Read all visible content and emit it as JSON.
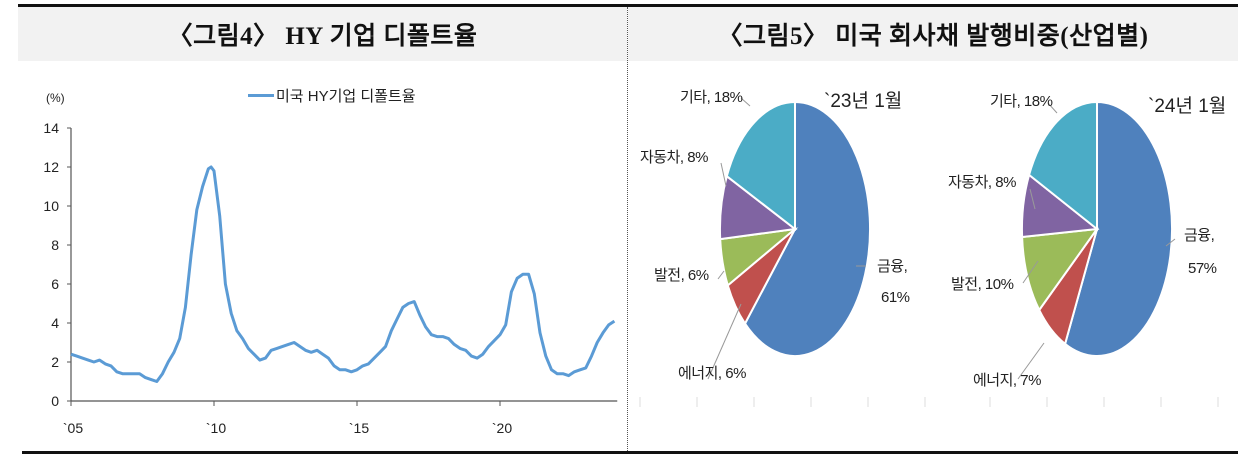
{
  "figure4": {
    "title": "〈그림4〉 HY 기업 디폴트율",
    "unit_label": "(%)",
    "legend_label": "미국 HY기업 디폴트율",
    "y_ticks": [
      "14",
      "12",
      "10",
      "8",
      "6",
      "4",
      "2",
      "0"
    ],
    "x_ticks": [
      "`05",
      "`10",
      "`15",
      "`20"
    ]
  },
  "figure5": {
    "title": "〈그림5〉 미국 회사채 발행비중(산업별)",
    "pie_2023": {
      "period": "`23년 1월",
      "labels": {
        "other": "기타, 18%",
        "auto": "자동차, 8%",
        "power": "발전, 6%",
        "energy": "에너지, 6%",
        "finance_name": "금융,",
        "finance_value": "61%"
      }
    },
    "pie_2024": {
      "period": "`24년 1월",
      "labels": {
        "other": "기타, 18%",
        "auto": "자동차, 8%",
        "power": "발전, 10%",
        "energy": "에너지, 7%",
        "finance_name": "금융,",
        "finance_value": "57%"
      }
    }
  },
  "colors": {
    "line": "#5b9bd5",
    "finance": "#4f81bd",
    "energy": "#c0504d",
    "power": "#9bbb59",
    "auto": "#8064a2",
    "other": "#4bacc6"
  },
  "chart_data": [
    {
      "type": "line",
      "title": "〈그림4〉 HY 기업 디폴트율",
      "xlabel": "",
      "ylabel": "(%)",
      "ylim": [
        0,
        14
      ],
      "xlim": [
        2005,
        2024.1
      ],
      "x_tick_labels": [
        "`05",
        "`10",
        "`15",
        "`20"
      ],
      "y_tick_labels": [
        0,
        2,
        4,
        6,
        8,
        10,
        12,
        14
      ],
      "grid": false,
      "legend_position": "top",
      "series": [
        {
          "name": "미국 HY기업 디폴트율",
          "x": [
            2005.0,
            2005.2,
            2005.4,
            2005.6,
            2005.8,
            2006.0,
            2006.2,
            2006.4,
            2006.6,
            2006.8,
            2007.0,
            2007.2,
            2007.4,
            2007.6,
            2007.8,
            2008.0,
            2008.2,
            2008.4,
            2008.6,
            2008.8,
            2009.0,
            2009.2,
            2009.4,
            2009.6,
            2009.8,
            2009.9,
            2010.0,
            2010.2,
            2010.4,
            2010.6,
            2010.8,
            2011.0,
            2011.2,
            2011.4,
            2011.6,
            2011.8,
            2012.0,
            2012.2,
            2012.4,
            2012.6,
            2012.8,
            2013.0,
            2013.2,
            2013.4,
            2013.6,
            2013.8,
            2014.0,
            2014.2,
            2014.4,
            2014.6,
            2014.8,
            2015.0,
            2015.2,
            2015.4,
            2015.6,
            2015.8,
            2016.0,
            2016.2,
            2016.4,
            2016.6,
            2016.8,
            2017.0,
            2017.2,
            2017.4,
            2017.6,
            2017.8,
            2018.0,
            2018.2,
            2018.4,
            2018.6,
            2018.8,
            2019.0,
            2019.2,
            2019.4,
            2019.6,
            2019.8,
            2020.0,
            2020.2,
            2020.4,
            2020.6,
            2020.8,
            2021.0,
            2021.2,
            2021.4,
            2021.6,
            2021.8,
            2022.0,
            2022.2,
            2022.4,
            2022.6,
            2022.8,
            2023.0,
            2023.2,
            2023.4,
            2023.6,
            2023.8,
            2024.0
          ],
          "y": [
            2.4,
            2.3,
            2.2,
            2.1,
            2.0,
            2.1,
            1.9,
            1.8,
            1.5,
            1.4,
            1.4,
            1.4,
            1.4,
            1.2,
            1.1,
            1.0,
            1.4,
            2.0,
            2.5,
            3.2,
            4.8,
            7.5,
            9.8,
            11.0,
            11.9,
            12.0,
            11.8,
            9.5,
            6.0,
            4.5,
            3.6,
            3.2,
            2.7,
            2.4,
            2.1,
            2.2,
            2.6,
            2.7,
            2.8,
            2.9,
            3.0,
            2.8,
            2.6,
            2.5,
            2.6,
            2.4,
            2.2,
            1.8,
            1.6,
            1.6,
            1.5,
            1.6,
            1.8,
            1.9,
            2.2,
            2.5,
            2.8,
            3.6,
            4.2,
            4.8,
            5.0,
            5.1,
            4.4,
            3.8,
            3.4,
            3.3,
            3.3,
            3.2,
            2.9,
            2.7,
            2.6,
            2.3,
            2.2,
            2.4,
            2.8,
            3.1,
            3.4,
            3.9,
            5.6,
            6.3,
            6.5,
            6.5,
            5.5,
            3.5,
            2.3,
            1.6,
            1.4,
            1.4,
            1.3,
            1.5,
            1.6,
            1.7,
            2.3,
            3.0,
            3.5,
            3.9,
            4.1
          ]
        }
      ]
    },
    {
      "type": "pie",
      "title": "〈그림5〉 미국 회사채 발행비중(산업별) - `23년 1월",
      "categories": [
        "금융",
        "에너지",
        "발전",
        "자동차",
        "기타"
      ],
      "values": [
        61,
        6,
        6,
        8,
        18
      ],
      "unit": "%"
    },
    {
      "type": "pie",
      "title": "〈그림5〉 미국 회사채 발행비중(산업별) - `24년 1월",
      "categories": [
        "금융",
        "에너지",
        "발전",
        "자동차",
        "기타"
      ],
      "values": [
        57,
        7,
        10,
        8,
        18
      ],
      "unit": "%"
    }
  ]
}
